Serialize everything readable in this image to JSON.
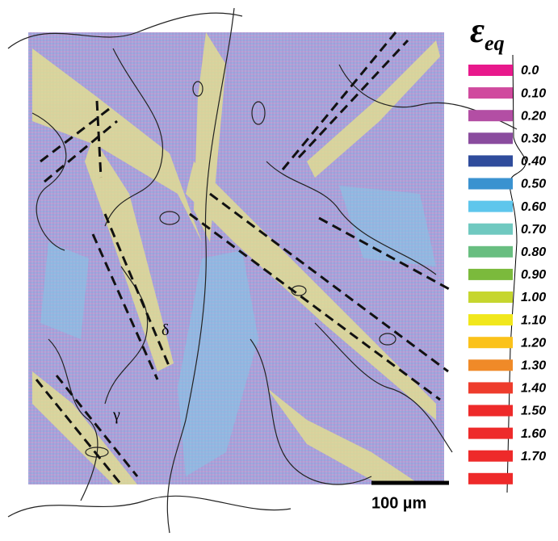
{
  "legend": {
    "title": "ε",
    "subscript": "eq",
    "entries": [
      {
        "label": "0.0",
        "color": "#e8198c"
      },
      {
        "label": "0.10",
        "color": "#d04a9e"
      },
      {
        "label": "0.20",
        "color": "#b34ea4"
      },
      {
        "label": "0.30",
        "color": "#8a4c9e"
      },
      {
        "label": "0.40",
        "color": "#2f4c9c"
      },
      {
        "label": "0.50",
        "color": "#3a92d0"
      },
      {
        "label": "0.60",
        "color": "#5ec6ec"
      },
      {
        "label": "0.70",
        "color": "#70c9c0"
      },
      {
        "label": "0.80",
        "color": "#68be80"
      },
      {
        "label": "0.90",
        "color": "#7bba3c"
      },
      {
        "label": "1.00",
        "color": "#c6d62f"
      },
      {
        "label": "1.10",
        "color": "#f1e71c"
      },
      {
        "label": "1.20",
        "color": "#fbc21a"
      },
      {
        "label": "1.30",
        "color": "#f08a28"
      },
      {
        "label": "1.40",
        "color": "#ee3c2c"
      },
      {
        "label": "1.50",
        "color": "#ee2a2a"
      },
      {
        "label": "1.60",
        "color": "#ee2a2a"
      },
      {
        "label": "1.70",
        "color": "#ee2a2a"
      },
      {
        "label": null,
        "color": "#ee2a2a"
      }
    ]
  },
  "annotations": {
    "delta": "δ",
    "gamma": "γ"
  },
  "scale_bar": {
    "label": "100 µm"
  }
}
